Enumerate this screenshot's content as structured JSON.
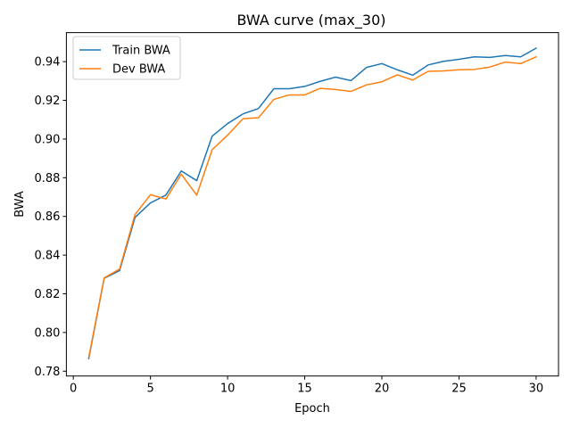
{
  "chart_data": {
    "type": "line",
    "title": "BWA curve (max_30)",
    "xlabel": "Epoch",
    "ylabel": "BWA",
    "xlim": [
      -0.45,
      31.45
    ],
    "ylim": [
      0.7775,
      0.955
    ],
    "xticks": [
      0,
      5,
      10,
      15,
      20,
      25,
      30
    ],
    "xtick_labels": [
      "0",
      "5",
      "10",
      "15",
      "20",
      "25",
      "30"
    ],
    "yticks": [
      0.78,
      0.8,
      0.82,
      0.84,
      0.86,
      0.88,
      0.9,
      0.92,
      0.94
    ],
    "ytick_labels": [
      "0.78",
      "0.80",
      "0.82",
      "0.84",
      "0.86",
      "0.88",
      "0.90",
      "0.92",
      "0.94"
    ],
    "grid": false,
    "legend_position": "top-left",
    "x": [
      1,
      2,
      3,
      4,
      5,
      6,
      7,
      8,
      9,
      10,
      11,
      12,
      13,
      14,
      15,
      16,
      17,
      18,
      19,
      20,
      21,
      22,
      23,
      24,
      25,
      26,
      27,
      28,
      29,
      30
    ],
    "series": [
      {
        "name": "Train BWA",
        "color": "#1f77b4",
        "values": [
          0.7865,
          0.828,
          0.832,
          0.8595,
          0.867,
          0.871,
          0.8835,
          0.8785,
          0.9015,
          0.908,
          0.913,
          0.9158,
          0.926,
          0.926,
          0.9272,
          0.9298,
          0.932,
          0.9302,
          0.937,
          0.939,
          0.9358,
          0.933,
          0.9383,
          0.9402,
          0.9412,
          0.9425,
          0.9422,
          0.9432,
          0.9425,
          0.947
        ]
      },
      {
        "name": "Dev BWA",
        "color": "#ff7f0e",
        "values": [
          0.7872,
          0.8282,
          0.8328,
          0.861,
          0.8712,
          0.869,
          0.8818,
          0.871,
          0.8945,
          0.902,
          0.9105,
          0.911,
          0.9205,
          0.9228,
          0.9228,
          0.9262,
          0.9256,
          0.9246,
          0.928,
          0.9296,
          0.9332,
          0.9305,
          0.935,
          0.9352,
          0.9358,
          0.936,
          0.9372,
          0.9398,
          0.939,
          0.9425
        ]
      }
    ]
  }
}
